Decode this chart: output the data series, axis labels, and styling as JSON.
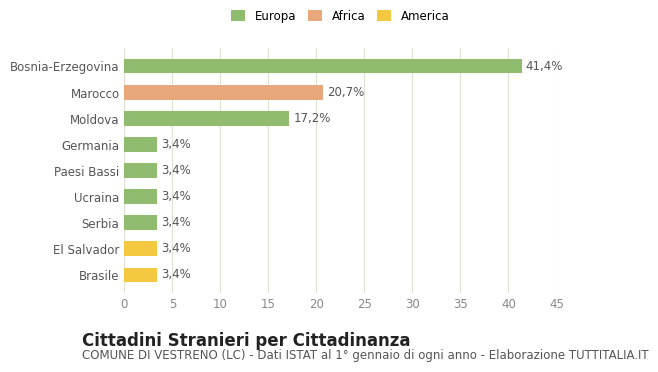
{
  "categories": [
    "Brasile",
    "El Salvador",
    "Serbia",
    "Ucraina",
    "Paesi Bassi",
    "Germania",
    "Moldova",
    "Marocco",
    "Bosnia-Erzegovina"
  ],
  "values": [
    3.4,
    3.4,
    3.4,
    3.4,
    3.4,
    3.4,
    17.2,
    20.7,
    41.4
  ],
  "labels": [
    "3,4%",
    "3,4%",
    "3,4%",
    "3,4%",
    "3,4%",
    "3,4%",
    "17,2%",
    "20,7%",
    "41,4%"
  ],
  "colors": [
    "#f5c842",
    "#f5c842",
    "#8fbc6e",
    "#8fbc6e",
    "#8fbc6e",
    "#8fbc6e",
    "#8fbc6e",
    "#e8a87c",
    "#8fbc6e"
  ],
  "continent": [
    "America",
    "America",
    "Europa",
    "Europa",
    "Europa",
    "Europa",
    "Europa",
    "Africa",
    "Europa"
  ],
  "legend": [
    {
      "label": "Europa",
      "color": "#8fbc6e"
    },
    {
      "label": "Africa",
      "color": "#e8a87c"
    },
    {
      "label": "America",
      "color": "#f5c842"
    }
  ],
  "title": "Cittadini Stranieri per Cittadinanza",
  "subtitle": "COMUNE DI VESTRENO (LC) - Dati ISTAT al 1° gennaio di ogni anno - Elaborazione TUTTITALIA.IT",
  "xlim": [
    0,
    45
  ],
  "xticks": [
    0,
    5,
    10,
    15,
    20,
    25,
    30,
    35,
    40,
    45
  ],
  "background_color": "#ffffff",
  "grid_color": "#e0e0d0",
  "bar_height": 0.55,
  "label_fontsize": 8.5,
  "title_fontsize": 12,
  "subtitle_fontsize": 8.5,
  "tick_fontsize": 8.5,
  "ylabel_fontsize": 8.5
}
